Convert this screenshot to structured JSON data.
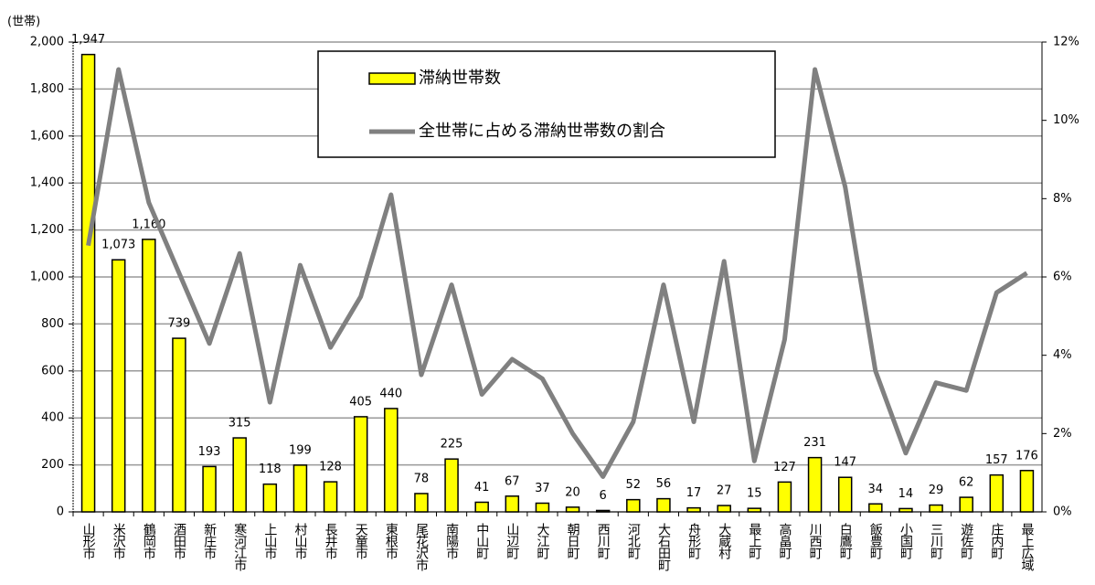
{
  "chart_data": {
    "type": "bar",
    "y_label": "(世帯)",
    "categories": [
      "山形市",
      "米沢市",
      "鶴岡市",
      "酒田市",
      "新庄市",
      "寒河江市",
      "上山市",
      "村山市",
      "長井市",
      "天童市",
      "東根市",
      "尾花沢市",
      "南陽市",
      "中山町",
      "山辺町",
      "大江町",
      "朝日町",
      "西川町",
      "河北町",
      "大石田町",
      "舟形町",
      "大蔵村",
      "最上町",
      "高畠町",
      "川西町",
      "白鷹町",
      "飯豊町",
      "小国町",
      "三川町",
      "遊佐町",
      "庄内町",
      "最上広域"
    ],
    "series": [
      {
        "name": "滞納世帯数",
        "type": "bar",
        "color": "#ffff00",
        "values": [
          1947,
          1073,
          1160,
          739,
          193,
          315,
          118,
          199,
          128,
          405,
          440,
          78,
          225,
          41,
          67,
          37,
          20,
          6,
          52,
          56,
          17,
          27,
          15,
          127,
          231,
          147,
          34,
          14,
          29,
          62,
          157,
          176
        ],
        "value_labels": [
          "1,947",
          "1,073",
          "1,160",
          "739",
          "193",
          "315",
          "118",
          "199",
          "128",
          "405",
          "440",
          "78",
          "225",
          "41",
          "67",
          "37",
          "20",
          "6",
          "52",
          "56",
          "17",
          "27",
          "15",
          "127",
          "231",
          "147",
          "34",
          "14",
          "29",
          "62",
          "157",
          "176"
        ]
      },
      {
        "name": "全世帯に占める滞納世帯数の割合",
        "type": "line",
        "axis": "y2",
        "color": "#808080",
        "values": [
          6.8,
          11.3,
          7.9,
          6.1,
          4.3,
          6.6,
          2.8,
          6.3,
          4.2,
          5.5,
          8.1,
          3.5,
          5.8,
          3.0,
          3.9,
          3.4,
          2.0,
          0.9,
          2.3,
          5.8,
          2.3,
          6.4,
          1.3,
          4.4,
          11.3,
          8.3,
          3.6,
          1.5,
          3.3,
          3.1,
          5.6,
          6.1
        ]
      }
    ],
    "ylim": [
      0,
      2000
    ],
    "yticks": [
      0,
      200,
      400,
      600,
      800,
      {
        "value": 1000,
        "label": "1,000"
      },
      {
        "value": 1200,
        "label": "1,200"
      },
      {
        "value": 1400,
        "label": "1,400"
      },
      {
        "value": 1600,
        "label": "1,600"
      },
      {
        "value": 1800,
        "label": "1,800"
      },
      {
        "value": 2000,
        "label": "2,000"
      }
    ],
    "y2lim": [
      0,
      12
    ],
    "y2ticks": [
      {
        "value": 0,
        "label": "0%"
      },
      {
        "value": 2,
        "label": "2%"
      },
      {
        "value": 4,
        "label": "4%"
      },
      {
        "value": 6,
        "label": "6%"
      },
      {
        "value": 8,
        "label": "8%"
      },
      {
        "value": 10,
        "label": "10%"
      },
      {
        "value": 12,
        "label": "12%"
      }
    ],
    "grid": true
  }
}
